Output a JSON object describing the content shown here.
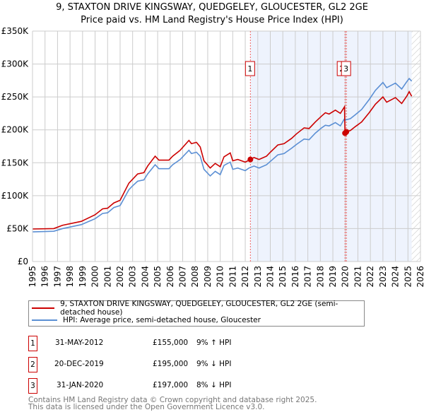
{
  "title": "9, STAXTON DRIVE KINGSWAY, QUEDGELEY, GLOUCESTER, GL2 2GE",
  "subtitle": "Price paid vs. HM Land Registry's House Price Index (HPI)",
  "colors": {
    "property": "#cc0000",
    "hpi": "#5b8fd4",
    "shade": "#eef3fd"
  },
  "chart_data": {
    "type": "line",
    "title": "Price paid vs. HM Land Registry's House Price Index (HPI)",
    "xlim": [
      1995,
      2026
    ],
    "ylim": [
      0,
      350000
    ],
    "yticks": [
      {
        "v": 0,
        "l": "£0"
      },
      {
        "v": 50000,
        "l": "£50K"
      },
      {
        "v": 100000,
        "l": "£100K"
      },
      {
        "v": 150000,
        "l": "£150K"
      },
      {
        "v": 200000,
        "l": "£200K"
      },
      {
        "v": 250000,
        "l": "£250K"
      },
      {
        "v": 300000,
        "l": "£300K"
      },
      {
        "v": 350000,
        "l": "£350K"
      }
    ],
    "xticks": [
      "1995",
      "1996",
      "1997",
      "1998",
      "1999",
      "2000",
      "2001",
      "2002",
      "2003",
      "2004",
      "2005",
      "2006",
      "2007",
      "2008",
      "2009",
      "2010",
      "2011",
      "2012",
      "2013",
      "2014",
      "2015",
      "2016",
      "2017",
      "2018",
      "2019",
      "2020",
      "2021",
      "2022",
      "2023",
      "2024",
      "2025",
      "2026"
    ],
    "shaded_range": [
      2012.41,
      2025.3
    ],
    "forecast_hatch_from": 2025.3,
    "series": [
      {
        "name": "9, STAXTON DRIVE KINGSWAY, QUEDGELEY, GLOUCESTER, GL2 2GE (semi-detached house)",
        "color": "#cc0000",
        "x": [
          1995.0,
          1996.7,
          1997.4,
          1998.9,
          2000.0,
          2000.6,
          2001.0,
          2001.5,
          2002.0,
          2002.7,
          2003.0,
          2003.4,
          2003.9,
          2004.2,
          2004.8,
          2005.1,
          2005.9,
          2006.2,
          2006.8,
          2007.5,
          2007.7,
          2008.1,
          2008.4,
          2008.7,
          2009.2,
          2009.6,
          2010.0,
          2010.3,
          2010.8,
          2011.0,
          2011.4,
          2012.0,
          2012.41,
          2012.7,
          2013.1,
          2013.7,
          2014.0,
          2014.6,
          2015.1,
          2015.7,
          2016.1,
          2016.7,
          2017.1,
          2017.6,
          2018.1,
          2018.4,
          2018.7,
          2019.2,
          2019.6,
          2019.93,
          2019.97,
          2020.08,
          2020.4,
          2020.8,
          2021.3,
          2021.9,
          2022.4,
          2023.0,
          2023.3,
          2024.0,
          2024.5,
          2024.9,
          2025.1,
          2025.3
        ],
        "y": [
          49400,
          50000,
          55000,
          61000,
          71000,
          80000,
          81000,
          89000,
          93000,
          119000,
          125000,
          133000,
          135000,
          145000,
          160000,
          154000,
          154000,
          160000,
          169000,
          184000,
          179000,
          181000,
          174000,
          153000,
          142000,
          149000,
          144000,
          159000,
          165000,
          153000,
          155000,
          151000,
          155000,
          158000,
          155000,
          160000,
          166000,
          177000,
          179000,
          187000,
          194000,
          203000,
          202000,
          212000,
          221000,
          226000,
          224000,
          230000,
          225000,
          235000,
          195000,
          197000,
          199000,
          205000,
          212000,
          226000,
          239000,
          250000,
          242000,
          249000,
          240000,
          251000,
          258000,
          251000
        ]
      },
      {
        "name": "HPI: Average price, semi-detached house, Gloucester",
        "color": "#5b8fd4",
        "x": [
          1995.0,
          1996.7,
          1997.4,
          1998.9,
          2000.0,
          2000.6,
          2001.0,
          2001.5,
          2002.0,
          2002.7,
          2003.0,
          2003.4,
          2003.9,
          2004.2,
          2004.8,
          2005.1,
          2005.9,
          2006.2,
          2006.8,
          2007.5,
          2007.7,
          2008.1,
          2008.4,
          2008.7,
          2009.2,
          2009.6,
          2010.0,
          2010.3,
          2010.8,
          2011.0,
          2011.4,
          2012.0,
          2012.3,
          2012.7,
          2013.1,
          2013.7,
          2014.0,
          2014.6,
          2015.1,
          2015.7,
          2016.1,
          2016.7,
          2017.1,
          2017.6,
          2018.1,
          2018.4,
          2018.7,
          2019.2,
          2019.6,
          2019.9,
          2020.0,
          2020.4,
          2020.8,
          2021.3,
          2021.9,
          2022.4,
          2023.0,
          2023.3,
          2024.0,
          2024.5,
          2024.9,
          2025.1,
          2025.3
        ],
        "y": [
          45000,
          46000,
          50000,
          56000,
          65000,
          73000,
          74000,
          82000,
          85000,
          109000,
          115000,
          122000,
          124000,
          133000,
          147000,
          141000,
          141000,
          147000,
          155000,
          169000,
          164000,
          166000,
          160000,
          140000,
          130000,
          137000,
          132000,
          146000,
          151000,
          140000,
          142000,
          138000,
          142000,
          145000,
          142000,
          147000,
          152000,
          162000,
          164000,
          172000,
          178000,
          186000,
          185000,
          195000,
          203000,
          207000,
          206000,
          211000,
          206000,
          216000,
          215000,
          217000,
          223000,
          231000,
          246000,
          260000,
          272000,
          264000,
          271000,
          262000,
          273000,
          278000,
          274000
        ]
      }
    ],
    "sales": [
      {
        "id": "1",
        "x": 2012.41,
        "y": 155000
      },
      {
        "id": "2",
        "x": 2019.97,
        "y": 195000
      },
      {
        "id": "3",
        "x": 2020.08,
        "y": 197000
      }
    ]
  },
  "legend": {
    "property": "9, STAXTON DRIVE KINGSWAY, QUEDGELEY, GLOUCESTER, GL2 2GE (semi-detached house)",
    "hpi": "HPI: Average price, semi-detached house, Gloucester"
  },
  "transactions": [
    {
      "id": "1",
      "date": "31-MAY-2012",
      "price": "£155,000",
      "hpi": "9% ↑ HPI"
    },
    {
      "id": "2",
      "date": "20-DEC-2019",
      "price": "£195,000",
      "hpi": "9% ↓ HPI"
    },
    {
      "id": "3",
      "date": "31-JAN-2020",
      "price": "£197,000",
      "hpi": "8% ↓ HPI"
    }
  ],
  "footer": {
    "line1": "Contains HM Land Registry data © Crown copyright and database right 2025.",
    "line2": "This data is licensed under the Open Government Licence v3.0."
  }
}
